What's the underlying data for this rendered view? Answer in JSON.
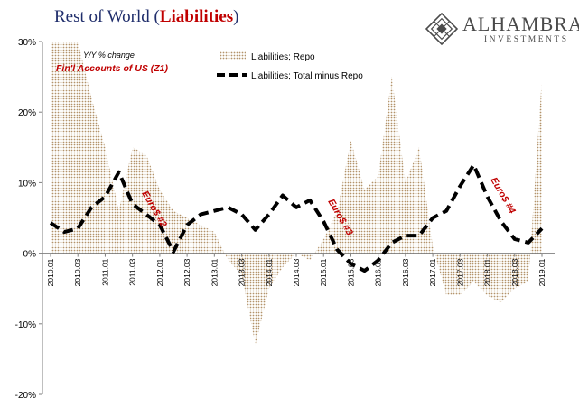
{
  "title": {
    "main": "Rest of World (",
    "highlight": "Liabilities",
    "tail": ")"
  },
  "logo": {
    "name": "ALHAMBRA",
    "sub": "INVESTMENTS"
  },
  "annotations": {
    "yy": "Y/Y % change",
    "source": "Fin'l Accounts of US (Z1)",
    "euro2": "Euro$ #2",
    "euro3": "Euro$ #3",
    "euro4": "Euro$ #4"
  },
  "colors": {
    "title": "#1f2d6b",
    "accent": "#c00000",
    "repo_fill": "#b3936a",
    "line": "#000000",
    "axis": "#7f7f7f",
    "logo": "#4a4a4a"
  },
  "chart_data": {
    "type": "area",
    "ylim": [
      -20,
      30
    ],
    "yticks": [
      "-20%",
      "-10%",
      "0%",
      "10%",
      "20%",
      "30%"
    ],
    "ytick_values": [
      -20,
      -10,
      0,
      10,
      20,
      30
    ],
    "xticks": [
      "2010.01",
      "2010.03",
      "2011.01",
      "2011.03",
      "2012.01",
      "2012.03",
      "2013.01",
      "2013.03",
      "2014.01",
      "2014.03",
      "2015.01",
      "2015.03",
      "2016.01",
      "2016.03",
      "2017.01",
      "2017.03",
      "2018.01",
      "2018.03",
      "2019.01"
    ],
    "x": [
      "2010.01",
      "2010.02",
      "2010.03",
      "2010.04",
      "2011.01",
      "2011.02",
      "2011.03",
      "2011.04",
      "2012.01",
      "2012.02",
      "2012.03",
      "2012.04",
      "2013.01",
      "2013.02",
      "2013.03",
      "2013.04",
      "2014.01",
      "2014.02",
      "2014.03",
      "2014.04",
      "2015.01",
      "2015.02",
      "2015.03",
      "2015.04",
      "2016.01",
      "2016.02",
      "2016.03",
      "2016.04",
      "2017.01",
      "2017.02",
      "2017.03",
      "2017.04",
      "2018.01",
      "2018.02",
      "2018.03",
      "2018.04",
      "2019.01"
    ],
    "legend": [
      "Liabilities; Repo",
      "Liabilities; Total minus Repo"
    ],
    "series": [
      {
        "name": "Liabilities; Repo",
        "kind": "area",
        "values": [
          32,
          31,
          30,
          22,
          15,
          6,
          15,
          14,
          9,
          6,
          5,
          4,
          3,
          -1,
          -3,
          -13,
          -5,
          -2,
          0,
          -1,
          2,
          6,
          16,
          9,
          11,
          25,
          10,
          15,
          1,
          -6,
          -6,
          -4,
          -6,
          -7,
          -5,
          -4,
          25
        ]
      },
      {
        "name": "Liabilities; Total minus Repo",
        "kind": "line",
        "values": [
          4.3,
          3.0,
          3.5,
          6.5,
          8.0,
          11.5,
          7.0,
          5.5,
          4.0,
          0.2,
          4.0,
          5.5,
          6.0,
          6.5,
          5.5,
          3.3,
          5.5,
          8.2,
          6.5,
          7.5,
          4.5,
          0.5,
          -1.5,
          -2.5,
          -1.0,
          1.5,
          2.5,
          2.5,
          5.0,
          6.0,
          9.5,
          12.5,
          8.0,
          4.5,
          2.0,
          1.5,
          3.5
        ]
      }
    ]
  }
}
